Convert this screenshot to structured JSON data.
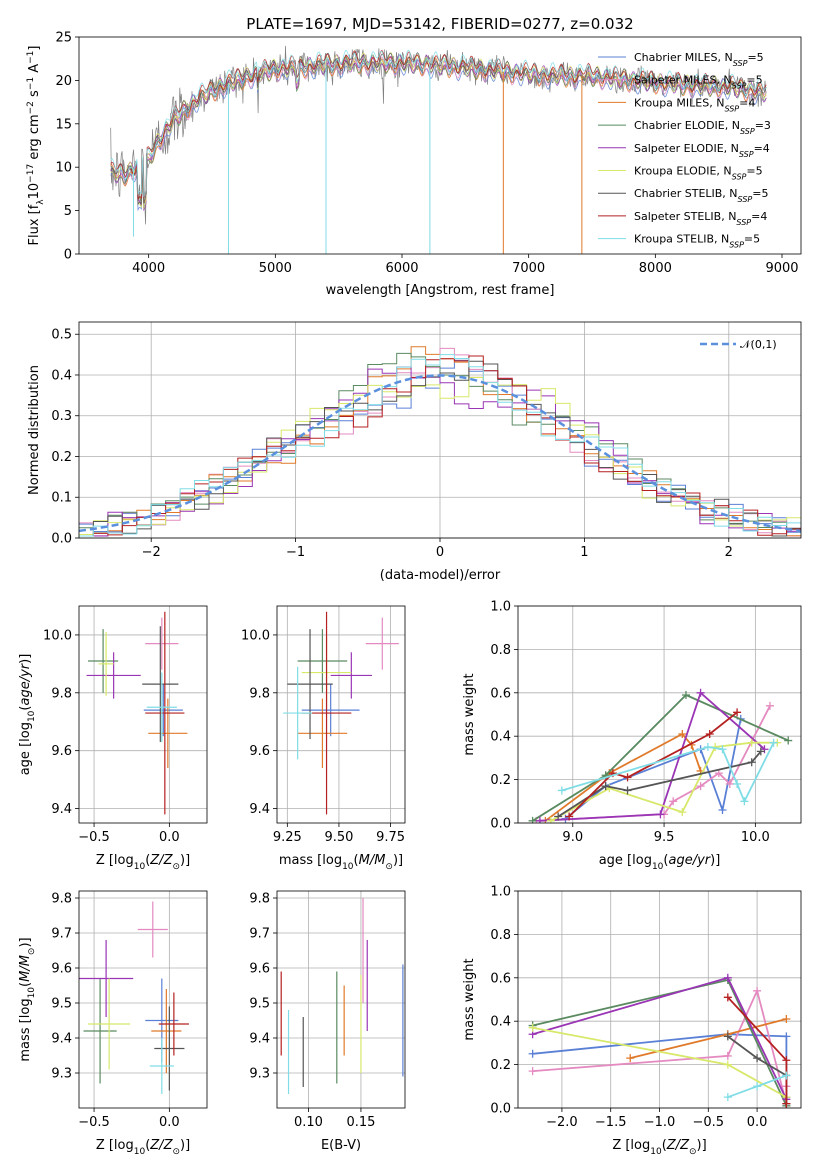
{
  "colors": {
    "Chabrier MILES": "#5a80d6",
    "Salpeter MILES": "#e48ac0",
    "Kroupa MILES": "#e07a2a",
    "Chabrier ELODIE": "#5a8a60",
    "Salpeter ELODIE": "#9a35b5",
    "Kroupa ELODIE": "#d8e86a",
    "Chabrier STELIB": "#555555",
    "Salpeter STELIB": "#b52020",
    "Kroupa STELIB": "#80dde6",
    "data": "#808080"
  },
  "chart_data": [
    {
      "id": "spectrum",
      "type": "line",
      "title": "PLATE=1697, MJD=53142, FIBERID=0277, z=0.032",
      "xlabel": "wavelength [Angstrom, rest frame]",
      "ylabel": "Flux [f_λ10^-17 erg cm^-2 s^-1 A^-1]",
      "xlim": [
        3450,
        9150
      ],
      "ylim": [
        0,
        25
      ],
      "xticks": [
        4000,
        5000,
        6000,
        7000,
        8000,
        9000
      ],
      "yticks": [
        0,
        5,
        10,
        15,
        20,
        25
      ],
      "grid": false,
      "legend_position": "top-right",
      "legend": [
        {
          "name": "Chabrier MILES",
          "nssp": "5"
        },
        {
          "name": "Salpeter MILES",
          "nssp": "5"
        },
        {
          "name": "Kroupa MILES",
          "nssp": "4"
        },
        {
          "name": "Chabrier ELODIE",
          "nssp": "3"
        },
        {
          "name": "Salpeter ELODIE",
          "nssp": "4"
        },
        {
          "name": "Kroupa ELODIE",
          "nssp": "5"
        },
        {
          "name": "Chabrier STELIB",
          "nssp": "5"
        },
        {
          "name": "Salpeter STELIB",
          "nssp": "4"
        },
        {
          "name": "Kroupa STELIB",
          "nssp": "5"
        }
      ],
      "continuum": [
        [
          3700,
          9.5
        ],
        [
          3800,
          9
        ],
        [
          3900,
          10
        ],
        [
          4000,
          11
        ],
        [
          4100,
          13.5
        ],
        [
          4200,
          15.5
        ],
        [
          4400,
          18
        ],
        [
          4600,
          19.5
        ],
        [
          4800,
          20.5
        ],
        [
          5000,
          21.3
        ],
        [
          5200,
          21.5
        ],
        [
          5400,
          21.8
        ],
        [
          5600,
          22
        ],
        [
          6000,
          22
        ],
        [
          6400,
          21.6
        ],
        [
          6800,
          21
        ],
        [
          7200,
          20.5
        ],
        [
          7500,
          20.5
        ],
        [
          7800,
          20
        ],
        [
          8200,
          19.5
        ],
        [
          8600,
          19.2
        ],
        [
          8900,
          18.5
        ]
      ],
      "dropouts": [
        [
          3880,
          2
        ],
        [
          4630,
          0
        ],
        [
          5400,
          0
        ],
        [
          6220,
          0
        ],
        [
          6800,
          0
        ],
        [
          7420,
          0
        ]
      ]
    },
    {
      "id": "residuals",
      "type": "histogram",
      "xlabel": "(data-model)/error",
      "ylabel": "Normed distribution",
      "xlim": [
        -2.5,
        2.5
      ],
      "ylim": [
        0,
        0.53
      ],
      "xticks": [
        -2,
        -1,
        0,
        1,
        2
      ],
      "yticks": [
        0.0,
        0.1,
        0.2,
        0.3,
        0.4,
        0.5
      ],
      "grid": true,
      "legend_position": "top-right",
      "reference_curve": {
        "label": "𝒩(0,1)",
        "color": "#5a90dd"
      },
      "bin_width": 0.1
    },
    {
      "id": "age-vs-Z",
      "type": "errorbar",
      "xlabel": "Z [log10(Z/Z⊙)]",
      "ylabel": "age [log10(age/yr)]",
      "xlim": [
        -0.6,
        0.25
      ],
      "ylim": [
        9.35,
        10.1
      ],
      "xticks": [
        -0.5,
        0.0
      ],
      "yticks": [
        9.4,
        9.6,
        9.8,
        10.0
      ],
      "grid": true,
      "points": [
        {
          "model": "Chabrier MILES",
          "x": -0.04,
          "y": 9.74,
          "xerr": 0.13,
          "yerr": 0.09
        },
        {
          "model": "Salpeter MILES",
          "x": -0.05,
          "y": 9.97,
          "xerr": 0.11,
          "yerr": 0.09
        },
        {
          "model": "Kroupa MILES",
          "x": -0.01,
          "y": 9.66,
          "xerr": 0.13,
          "yerr": 0.12
        },
        {
          "model": "Chabrier ELODIE",
          "x": -0.44,
          "y": 9.91,
          "xerr": 0.1,
          "yerr": 0.11
        },
        {
          "model": "Salpeter ELODIE",
          "x": -0.37,
          "y": 9.86,
          "xerr": 0.18,
          "yerr": 0.08
        },
        {
          "model": "Kroupa ELODIE",
          "x": -0.42,
          "y": 9.9,
          "xerr": 0.05,
          "yerr": 0.11
        },
        {
          "model": "Chabrier STELIB",
          "x": -0.06,
          "y": 9.83,
          "xerr": 0.12,
          "yerr": 0.2
        },
        {
          "model": "Salpeter STELIB",
          "x": -0.03,
          "y": 9.73,
          "xerr": 0.13,
          "yerr": 0.35
        },
        {
          "model": "Kroupa STELIB",
          "x": -0.05,
          "y": 9.75,
          "xerr": 0.1,
          "yerr": 0.12
        }
      ]
    },
    {
      "id": "age-vs-mass",
      "type": "errorbar",
      "xlabel": "mass [log10(M/M⊙)]",
      "ylabel": "",
      "xlim": [
        9.2,
        9.82
      ],
      "ylim": [
        9.35,
        10.1
      ],
      "xticks": [
        9.25,
        9.5,
        9.75
      ],
      "yticks": [
        9.4,
        9.6,
        9.8,
        10.0
      ],
      "grid": true,
      "points": [
        {
          "model": "Chabrier MILES",
          "x": 9.46,
          "y": 9.74,
          "xerr": 0.14,
          "yerr": 0.09
        },
        {
          "model": "Salpeter MILES",
          "x": 9.71,
          "y": 9.97,
          "xerr": 0.08,
          "yerr": 0.09
        },
        {
          "model": "Kroupa MILES",
          "x": 9.42,
          "y": 9.66,
          "xerr": 0.12,
          "yerr": 0.12
        },
        {
          "model": "Chabrier ELODIE",
          "x": 9.42,
          "y": 9.91,
          "xerr": 0.12,
          "yerr": 0.11
        },
        {
          "model": "Salpeter ELODIE",
          "x": 9.56,
          "y": 9.86,
          "xerr": 0.1,
          "yerr": 0.08
        },
        {
          "model": "Kroupa ELODIE",
          "x": 9.44,
          "y": 9.87,
          "xerr": 0.12,
          "yerr": 0.12
        },
        {
          "model": "Chabrier STELIB",
          "x": 9.36,
          "y": 9.83,
          "xerr": 0.11,
          "yerr": 0.19
        },
        {
          "model": "Salpeter STELIB",
          "x": 9.44,
          "y": 9.73,
          "xerr": 0.12,
          "yerr": 0.35
        },
        {
          "model": "Kroupa STELIB",
          "x": 9.3,
          "y": 9.73,
          "xerr": 0.07,
          "yerr": 0.16
        }
      ]
    },
    {
      "id": "weight-vs-age",
      "type": "line",
      "xlabel": "age [log10(age/yr)]",
      "ylabel": "mass weight",
      "xlim": [
        8.7,
        10.25
      ],
      "ylim": [
        0,
        1.0
      ],
      "xticks": [
        9.0,
        9.5,
        10.0
      ],
      "yticks": [
        0.0,
        0.2,
        0.4,
        0.6,
        0.8,
        1.0
      ],
      "grid": true,
      "series": [
        {
          "model": "Chabrier MILES",
          "x": [
            8.96,
            9.18,
            9.7,
            9.82,
            9.92
          ],
          "y": [
            0.02,
            0.17,
            0.34,
            0.06,
            0.48
          ]
        },
        {
          "model": "Salpeter MILES",
          "x": [
            8.8,
            9.5,
            9.55,
            9.7,
            9.8,
            9.86,
            10.08
          ],
          "y": [
            0.01,
            0.04,
            0.1,
            0.17,
            0.23,
            0.18,
            0.54
          ]
        },
        {
          "model": "Kroupa MILES",
          "x": [
            8.85,
            9.2,
            9.6,
            9.65,
            9.7
          ],
          "y": [
            0.01,
            0.23,
            0.41,
            0.36,
            0.24
          ]
        },
        {
          "model": "Chabrier ELODIE",
          "x": [
            8.78,
            9.18,
            9.62,
            10.18
          ],
          "y": [
            0.01,
            0.22,
            0.59,
            0.38
          ]
        },
        {
          "model": "Salpeter ELODIE",
          "x": [
            8.82,
            9.48,
            9.7,
            10.05
          ],
          "y": [
            0.01,
            0.04,
            0.6,
            0.34
          ]
        },
        {
          "model": "Kroupa ELODIE",
          "x": [
            8.88,
            9.2,
            9.6,
            9.78,
            9.98,
            10.12
          ],
          "y": [
            0.01,
            0.16,
            0.05,
            0.35,
            0.37,
            0.37
          ]
        },
        {
          "model": "Chabrier STELIB",
          "x": [
            8.92,
            9.18,
            9.3,
            9.98,
            10.03
          ],
          "y": [
            0.03,
            0.17,
            0.15,
            0.28,
            0.33
          ]
        },
        {
          "model": "Salpeter STELIB",
          "x": [
            8.98,
            9.22,
            9.3,
            9.75,
            9.9
          ],
          "y": [
            0.03,
            0.23,
            0.21,
            0.41,
            0.51
          ]
        },
        {
          "model": "Kroupa STELIB",
          "x": [
            8.94,
            9.74,
            9.82,
            9.9,
            9.94,
            10.1
          ],
          "y": [
            0.15,
            0.35,
            0.34,
            0.18,
            0.1,
            0.37
          ]
        }
      ]
    },
    {
      "id": "mass-vs-Z",
      "type": "errorbar",
      "xlabel": "Z [log10(Z/Z⊙)]",
      "ylabel": "mass [log10(M/M⊙)]",
      "xlim": [
        -0.6,
        0.25
      ],
      "ylim": [
        9.2,
        9.82
      ],
      "xticks": [
        -0.5,
        0.0
      ],
      "yticks": [
        9.3,
        9.4,
        9.5,
        9.6,
        9.7,
        9.8
      ],
      "grid": true,
      "points": [
        {
          "model": "Chabrier MILES",
          "x": -0.05,
          "y": 9.45,
          "xerr": 0.11,
          "yerr": 0.12
        },
        {
          "model": "Salpeter MILES",
          "x": -0.11,
          "y": 9.71,
          "xerr": 0.1,
          "yerr": 0.08
        },
        {
          "model": "Kroupa MILES",
          "x": -0.02,
          "y": 9.42,
          "xerr": 0.1,
          "yerr": 0.12
        },
        {
          "model": "Chabrier ELODIE",
          "x": -0.46,
          "y": 9.42,
          "xerr": 0.11,
          "yerr": 0.15
        },
        {
          "model": "Salpeter ELODIE",
          "x": -0.42,
          "y": 9.57,
          "xerr": 0.18,
          "yerr": 0.11
        },
        {
          "model": "Kroupa ELODIE",
          "x": -0.4,
          "y": 9.44,
          "xerr": 0.14,
          "yerr": 0.13
        },
        {
          "model": "Chabrier STELIB",
          "x": 0.0,
          "y": 9.37,
          "xerr": 0.1,
          "yerr": 0.12
        },
        {
          "model": "Salpeter STELIB",
          "x": 0.03,
          "y": 9.44,
          "xerr": 0.1,
          "yerr": 0.09
        },
        {
          "model": "Kroupa STELIB",
          "x": -0.05,
          "y": 9.32,
          "xerr": 0.08,
          "yerr": 0.08
        }
      ]
    },
    {
      "id": "mass-vs-EBV",
      "type": "errorbar",
      "xlabel": "E(B-V)",
      "ylabel": "",
      "xlim": [
        0.07,
        0.192
      ],
      "ylim": [
        9.2,
        9.82
      ],
      "xticks": [
        0.1,
        0.15
      ],
      "yticks": [
        9.3,
        9.4,
        9.5,
        9.6,
        9.7,
        9.8
      ],
      "grid": true,
      "points": [
        {
          "model": "Chabrier MILES",
          "x": 0.19,
          "y": 9.45,
          "xerr": 0,
          "yerr": 0.16
        },
        {
          "model": "Salpeter MILES",
          "x": 0.152,
          "y": 9.65,
          "xerr": 0,
          "yerr": 0.15
        },
        {
          "model": "Kroupa MILES",
          "x": 0.134,
          "y": 9.45,
          "xerr": 0,
          "yerr": 0.1
        },
        {
          "model": "Chabrier ELODIE",
          "x": 0.127,
          "y": 9.43,
          "xerr": 0,
          "yerr": 0.16
        },
        {
          "model": "Salpeter ELODIE",
          "x": 0.156,
          "y": 9.55,
          "xerr": 0,
          "yerr": 0.13
        },
        {
          "model": "Kroupa ELODIE",
          "x": 0.15,
          "y": 9.44,
          "xerr": 0,
          "yerr": 0.14
        },
        {
          "model": "Chabrier STELIB",
          "x": 0.095,
          "y": 9.36,
          "xerr": 0,
          "yerr": 0.1
        },
        {
          "model": "Salpeter STELIB",
          "x": 0.074,
          "y": 9.47,
          "xerr": 0,
          "yerr": 0.12
        },
        {
          "model": "Kroupa STELIB",
          "x": 0.081,
          "y": 9.36,
          "xerr": 0,
          "yerr": 0.12
        }
      ]
    },
    {
      "id": "weight-vs-Z",
      "type": "line",
      "xlabel": "Z [log10(Z/Z⊙)]",
      "ylabel": "mass weight",
      "xlim": [
        -2.45,
        0.45
      ],
      "ylim": [
        0,
        1.0
      ],
      "xticks": [
        -2.0,
        -1.5,
        -1.0,
        -0.5,
        0.0
      ],
      "yticks": [
        0.0,
        0.2,
        0.4,
        0.6,
        0.8,
        1.0
      ],
      "grid": true,
      "series": [
        {
          "model": "Chabrier MILES",
          "x": [
            -2.3,
            -0.3,
            0.3,
            0.3
          ],
          "y": [
            0.25,
            0.34,
            0.33,
            0.05
          ]
        },
        {
          "model": "Salpeter MILES",
          "x": [
            -2.3,
            -0.3,
            0.0,
            0.3,
            0.3
          ],
          "y": [
            0.17,
            0.24,
            0.54,
            0.02,
            0.1
          ]
        },
        {
          "model": "Kroupa MILES",
          "x": [
            -1.3,
            -0.3,
            0.3
          ],
          "y": [
            0.23,
            0.34,
            0.41
          ]
        },
        {
          "model": "Chabrier ELODIE",
          "x": [
            -2.3,
            -0.3,
            0.3
          ],
          "y": [
            0.38,
            0.59,
            0.01
          ]
        },
        {
          "model": "Salpeter ELODIE",
          "x": [
            -2.3,
            -0.3,
            0.3
          ],
          "y": [
            0.34,
            0.6,
            0.04
          ]
        },
        {
          "model": "Kroupa ELODIE",
          "x": [
            -2.3,
            -0.3,
            0.3
          ],
          "y": [
            0.37,
            0.2,
            0.05
          ]
        },
        {
          "model": "Chabrier STELIB",
          "x": [
            -0.3,
            0.0,
            0.3,
            0.3
          ],
          "y": [
            0.33,
            0.23,
            0.15,
            0.02
          ]
        },
        {
          "model": "Salpeter STELIB",
          "x": [
            -0.3,
            0.3,
            0.3
          ],
          "y": [
            0.51,
            0.22,
            0.02
          ]
        },
        {
          "model": "Kroupa STELIB",
          "x": [
            -0.3,
            0.0,
            0.3
          ],
          "y": [
            0.05,
            0.1,
            0.15
          ]
        }
      ]
    }
  ]
}
